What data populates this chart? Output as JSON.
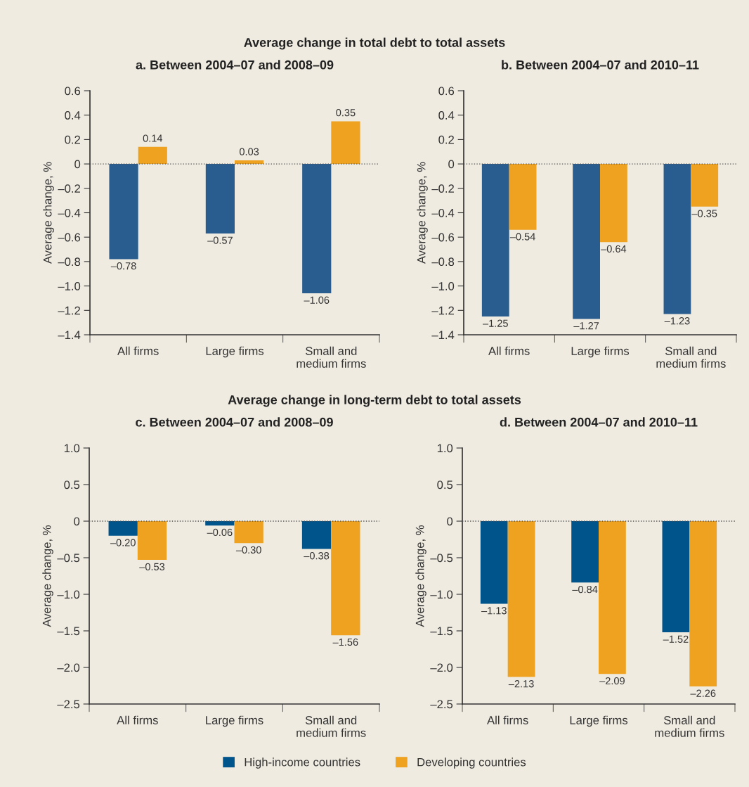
{
  "chart_data": [
    {
      "type": "bar",
      "title": "a. Between 2004–07 and 2008–09",
      "ylabel": "Average change, %",
      "annotations": [
        "Average change in total debt to total assets"
      ],
      "categories": [
        "All firms",
        "Large firms",
        "Small and\nmedium firms"
      ],
      "series": [
        {
          "color": "#2a5d8f",
          "values": [
            -0.78,
            -0.57,
            -1.06
          ],
          "value_labels": [
            "–0.78",
            "–0.57",
            "–1.06"
          ]
        },
        {
          "color": "#eea220",
          "values": [
            0.14,
            0.03,
            0.35
          ],
          "value_labels": [
            "0.14",
            "0.03",
            "0.35"
          ]
        }
      ],
      "ylim": [
        -1.4,
        0.6
      ],
      "yticks": [
        0.6,
        0.4,
        0.2,
        0,
        {
          "value": -0.2,
          "label": "–0.2"
        },
        {
          "value": -0.4,
          "label": "–0.4"
        },
        {
          "value": -0.6,
          "label": "–0.6"
        },
        {
          "value": -0.8,
          "label": "–0.8"
        },
        {
          "value": -1.0,
          "label": "–1.0"
        },
        {
          "value": -1.2,
          "label": "–1.2"
        },
        {
          "value": -1.4,
          "label": "–1.4"
        }
      ],
      "ref_lines": [
        {
          "axis": "y",
          "value": 0,
          "line_style": "dotted",
          "color": "#555555"
        }
      ]
    },
    {
      "type": "bar",
      "title": "b. Between 2004–07 and 2010–11",
      "ylabel": "Average change, %",
      "categories": [
        "All firms",
        "Large firms",
        "Small and\nmedium firms"
      ],
      "series": [
        {
          "color": "#2a5d8f",
          "values": [
            -1.25,
            -1.27,
            -1.23
          ],
          "value_labels": [
            "–1.25",
            "–1.27",
            "–1.23"
          ]
        },
        {
          "color": "#eea220",
          "values": [
            -0.54,
            -0.64,
            -0.35
          ],
          "value_labels": [
            "–0.54",
            "–0.64",
            "–0.35"
          ]
        }
      ],
      "ylim": [
        -1.4,
        0.6
      ],
      "yticks": [
        0.6,
        0.4,
        0.2,
        0,
        {
          "value": -0.2,
          "label": "–0.2"
        },
        {
          "value": -0.4,
          "label": "–0.4"
        },
        {
          "value": -0.6,
          "label": "–0.6"
        },
        {
          "value": -0.8,
          "label": "–0.8"
        },
        {
          "value": -1.0,
          "label": "–1.0"
        },
        {
          "value": -1.2,
          "label": "–1.2"
        },
        {
          "value": -1.4,
          "label": "–1.4"
        }
      ],
      "ref_lines": [
        {
          "axis": "y",
          "value": 0,
          "line_style": "dotted",
          "color": "#555555"
        }
      ]
    },
    {
      "type": "bar",
      "title": "c. Between 2004–07 and 2008–09",
      "ylabel": "Average change, %",
      "annotations": [
        "Average change in long-term debt to total assets"
      ],
      "categories": [
        "All firms",
        "Large firms",
        "Small and\nmedium firms"
      ],
      "series": [
        {
          "color": "#00548c",
          "values": [
            -0.2,
            -0.06,
            -0.38
          ],
          "value_labels": [
            "–0.20",
            "–0.06",
            "–0.38"
          ]
        },
        {
          "color": "#eea220",
          "values": [
            -0.53,
            -0.3,
            -1.56
          ],
          "value_labels": [
            "–0.53",
            "–0.30",
            "–1.56"
          ]
        }
      ],
      "ylim": [
        -2.5,
        1.0
      ],
      "yticks": [
        {
          "value": 1.0,
          "label": "1.0"
        },
        0.5,
        0,
        {
          "value": -0.5,
          "label": "–0.5"
        },
        {
          "value": -1.0,
          "label": "–1.0"
        },
        {
          "value": -1.5,
          "label": "–1.5"
        },
        {
          "value": -2.0,
          "label": "–2.0"
        },
        {
          "value": -2.5,
          "label": "–2.5"
        }
      ],
      "ref_lines": [
        {
          "axis": "y",
          "value": 0,
          "line_style": "dotted",
          "color": "#555555"
        }
      ]
    },
    {
      "type": "bar",
      "title": "d. Between 2004–07 and 2010–11",
      "ylabel": "Average change, %",
      "categories": [
        "All firms",
        "Large firms",
        "Small and\nmedium firms"
      ],
      "series": [
        {
          "name": "High-income countries",
          "color": "#00548c",
          "values": [
            -1.13,
            -0.84,
            -1.52
          ],
          "value_labels": [
            "–1.13",
            "–0.84",
            "–1.52"
          ]
        },
        {
          "name": "Developing countries",
          "color": "#eea220",
          "values": [
            -2.13,
            -2.09,
            -2.26
          ],
          "value_labels": [
            "–2.13",
            "–2.09",
            "–2.26"
          ]
        }
      ],
      "ylim": [
        -2.5,
        1.0
      ],
      "yticks": [
        {
          "value": 1.0,
          "label": "1.0"
        },
        0.5,
        0,
        {
          "value": -0.5,
          "label": "–0.5"
        },
        {
          "value": -1.0,
          "label": "–1.0"
        },
        {
          "value": -1.5,
          "label": "–1.5"
        },
        {
          "value": -2.0,
          "label": "–2.0"
        },
        {
          "value": -2.5,
          "label": "–2.5"
        }
      ],
      "ref_lines": [
        {
          "axis": "y",
          "value": 0,
          "line_style": "dotted",
          "color": "#555555"
        }
      ],
      "legend": "bottom"
    }
  ]
}
